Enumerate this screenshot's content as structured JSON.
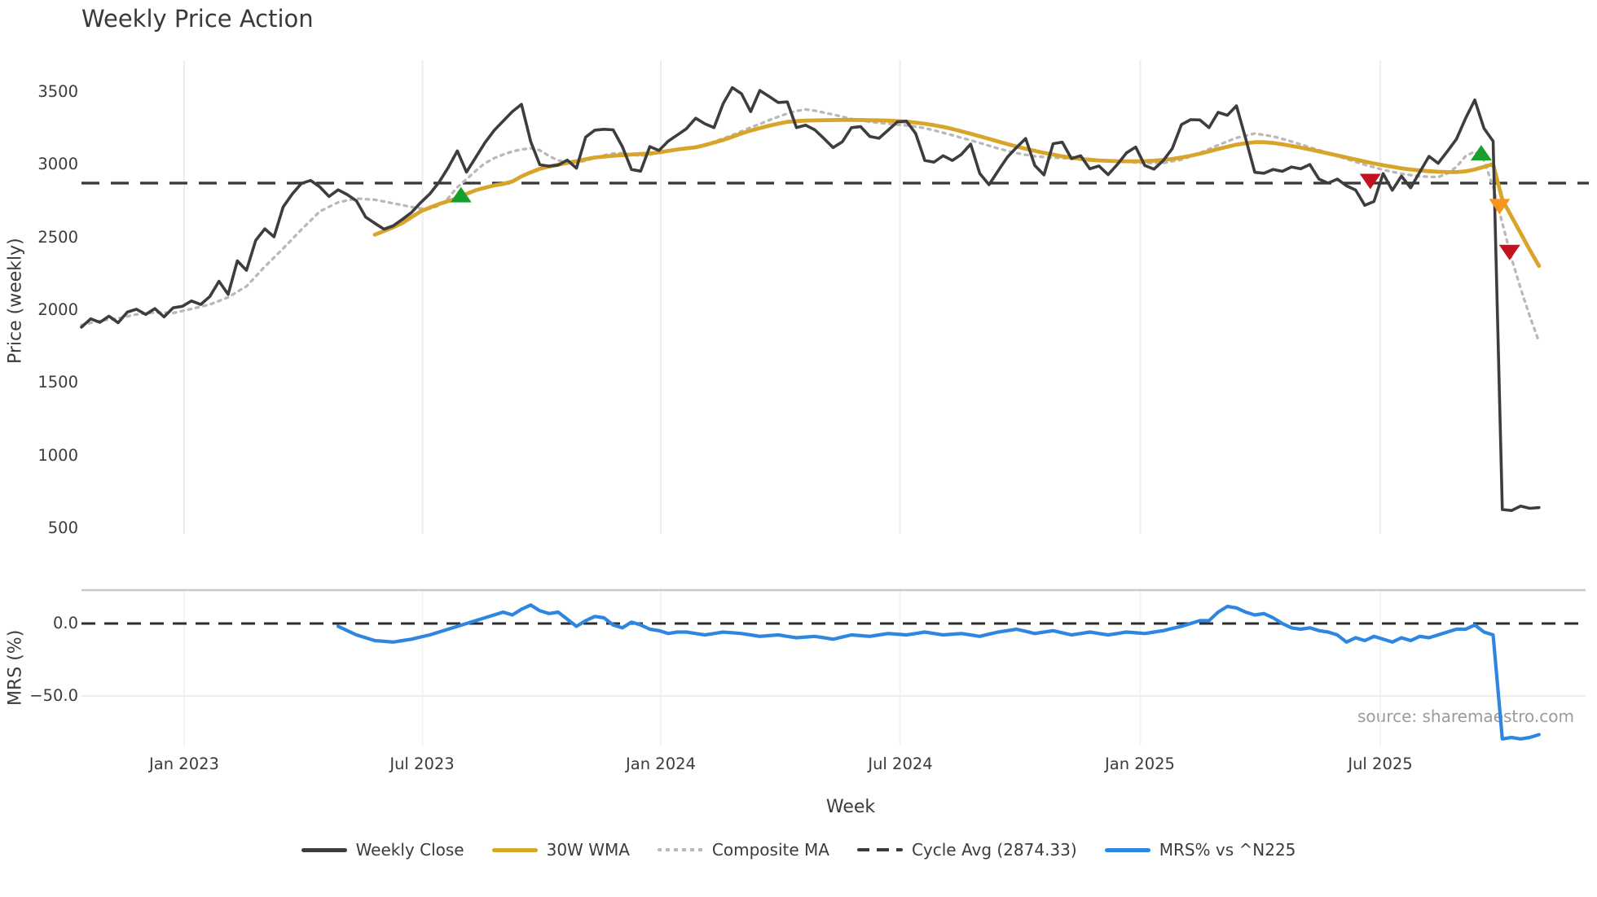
{
  "title": "Weekly Price Action",
  "source": "source: sharemaestro.com",
  "price_axis": {
    "label": "Price (weekly)",
    "ticks": [
      "3500",
      "3000",
      "2500",
      "2000",
      "1500",
      "1000",
      "500"
    ]
  },
  "mrs_axis": {
    "label": "MRS (%)",
    "ticks": [
      "0.0",
      "−50.0"
    ]
  },
  "x_axis": {
    "label": "Week",
    "ticks": [
      "Jan 2023",
      "Jul 2023",
      "Jan 2024",
      "Jul 2024",
      "Jan 2025",
      "Jul 2025"
    ]
  },
  "legend": {
    "items": [
      {
        "label": "Weekly Close",
        "swatch": "solid",
        "color": "#3d3d3d"
      },
      {
        "label": "30W WMA",
        "swatch": "solid",
        "color": "#d9a42a"
      },
      {
        "label": "Composite MA",
        "swatch": "dotted",
        "color": "#b9b9b9"
      },
      {
        "label": "Cycle Avg (2874.33)",
        "swatch": "dashed",
        "color": "#3a3a3a"
      },
      {
        "label": "MRS% vs ^N225",
        "swatch": "solid",
        "color": "#2e86e0"
      }
    ]
  },
  "colors": {
    "weekly_close": "#3d3d3d",
    "wma30": "#d9a42a",
    "composite": "#b9b9b9",
    "cycle_avg": "#3a3a3a",
    "mrs": "#2e86e0",
    "signal_green": "#16a02b",
    "signal_red": "#c41320",
    "signal_orange": "#f7941d",
    "gridline": "#ededf1"
  },
  "chart_data": {
    "type": "line",
    "x_unit": "week",
    "x_tick_weeks": [
      11.2,
      37.2,
      63.2,
      89.3,
      115.5,
      141.7
    ],
    "x_tick_labels": [
      "Jan 2023",
      "Jul 2023",
      "Jan 2024",
      "Jul 2024",
      "Jan 2025",
      "Jul 2025"
    ],
    "panels": [
      {
        "name": "price",
        "ylabel": "Price (weekly)",
        "yticks": [
          3500,
          3000,
          2500,
          2000,
          1500,
          1000,
          500
        ],
        "ylim": [
          450,
          3720
        ],
        "cycle_avg": 2874.33,
        "series": [
          {
            "name": "Weekly Close",
            "style": "solid",
            "start_week": 0,
            "values": [
              1885,
              1942,
              1918,
              1960,
              1915,
              1988,
              2008,
              1972,
              2012,
              1955,
              2018,
              2028,
              2065,
              2040,
              2095,
              2200,
              2110,
              2340,
              2275,
              2480,
              2560,
              2505,
              2710,
              2800,
              2872,
              2892,
              2848,
              2782,
              2828,
              2795,
              2752,
              2640,
              2598,
              2558,
              2580,
              2625,
              2672,
              2740,
              2800,
              2880,
              2980,
              3095,
              2950,
              3050,
              3150,
              3235,
              3300,
              3365,
              3415,
              3160,
              3000,
              2990,
              2998,
              3032,
              2976,
              3190,
              3238,
              3244,
              3240,
              3125,
              2968,
              2956,
              3125,
              3098,
              3162,
              3205,
              3248,
              3320,
              3282,
              3255,
              3420,
              3530,
              3488,
              3365,
              3510,
              3470,
              3428,
              3432,
              3255,
              3272,
              3240,
              3180,
              3118,
              3158,
              3255,
              3262,
              3195,
              3182,
              3238,
              3295,
              3300,
              3215,
              3030,
              3018,
              3062,
              3030,
              3072,
              3142,
              2940,
              2863,
              2958,
              3052,
              3118,
              3180,
              2995,
              2930,
              3145,
              3155,
              3042,
              3062,
              2972,
              2992,
              2932,
              3002,
              3082,
              3122,
              2995,
              2970,
              3028,
              3112,
              3276,
              3310,
              3308,
              3255,
              3360,
              3340,
              3405,
              3180,
              2948,
              2942,
              2968,
              2955,
              2985,
              2972,
              3002,
              2902,
              2874,
              2902,
              2856,
              2826,
              2722,
              2748,
              2940,
              2825,
              2922,
              2842,
              2950,
              3058,
              3010,
              3092,
              3176,
              3320,
              3445,
              3250,
              3162,
              632,
              625,
              655,
              640,
              645
            ]
          },
          {
            "name": "30W WMA",
            "style": "solid",
            "start_week": 32,
            "values": [
              2520,
              2545,
              2570,
              2600,
              2640,
              2680,
              2706,
              2730,
              2750,
              2770,
              2800,
              2825,
              2842,
              2858,
              2868,
              2885,
              2920,
              2948,
              2972,
              2988,
              3000,
              3013,
              3025,
              3038,
              3050,
              3056,
              3062,
              3066,
              3070,
              3074,
              3078,
              3085,
              3095,
              3105,
              3113,
              3120,
              3135,
              3152,
              3170,
              3192,
              3215,
              3235,
              3252,
              3268,
              3282,
              3295,
              3300,
              3303,
              3305,
              3306,
              3307,
              3308,
              3308,
              3307,
              3306,
              3305,
              3303,
              3300,
              3296,
              3290,
              3282,
              3272,
              3260,
              3246,
              3230,
              3213,
              3196,
              3178,
              3160,
              3143,
              3126,
              3110,
              3096,
              3082,
              3070,
              3058,
              3048,
              3040,
              3034,
              3030,
              3027,
              3025,
              3024,
              3024,
              3025,
              3028,
              3033,
              3040,
              3050,
              3062,
              3076,
              3092,
              3108,
              3124,
              3138,
              3148,
              3155,
              3155,
              3150,
              3141,
              3130,
              3118,
              3105,
              3092,
              3078,
              3064,
              3050,
              3036,
              3022,
              3009,
              2997,
              2986,
              2976,
              2968,
              2961,
              2956,
              2952,
              2950,
              2950,
              2955,
              2968,
              2986,
              3005,
              2760,
              2645,
              2530,
              2415,
              2305
            ]
          },
          {
            "name": "Composite MA",
            "style": "dotted",
            "start_week": 0,
            "values": [
              1900,
              1914,
              1928,
              1937,
              1945,
              1959,
              1972,
              1979,
              1985,
              1984,
              1982,
              1996,
              2010,
              2025,
              2040,
              2065,
              2090,
              2128,
              2165,
              2233,
              2300,
              2363,
              2425,
              2490,
              2555,
              2618,
              2680,
              2711,
              2742,
              2755,
              2768,
              2764,
              2760,
              2748,
              2735,
              2723,
              2710,
              2700,
              2698,
              2720,
              2770,
              2846,
              2900,
              2958,
              3010,
              3045,
              3070,
              3092,
              3105,
              3113,
              3100,
              3060,
              3030,
              3018,
              3015,
              3028,
              3048,
              3065,
              3078,
              3080,
              3070,
              3062,
              3070,
              3085,
              3097,
              3103,
              3110,
              3124,
              3140,
              3158,
              3180,
              3204,
              3230,
              3256,
              3280,
              3306,
              3330,
              3352,
              3370,
              3380,
              3372,
              3358,
              3345,
              3330,
              3315,
              3305,
              3295,
              3288,
              3282,
              3276,
              3270,
              3262,
              3252,
              3236,
              3220,
              3203,
              3185,
              3168,
              3150,
              3131,
              3112,
              3096,
              3080,
              3069,
              3058,
              3053,
              3048,
              3046,
              3044,
              3041,
              3038,
              3033,
              3028,
              3024,
              3020,
              3016,
              3012,
              3012,
              3012,
              3024,
              3035,
              3058,
              3080,
              3108,
              3135,
              3160,
              3185,
              3200,
              3215,
              3205,
              3195,
              3178,
              3160,
              3140,
              3120,
              3100,
              3080,
              3060,
              3040,
              3020,
              3000,
              2983,
              2965,
              2952,
              2938,
              2929,
              2920,
              2918,
              2915,
              2940,
              2985,
              3060,
              3090,
              3030,
              2850,
              2600,
              2360,
              2150,
              1960,
              1784
            ]
          }
        ],
        "markers": [
          {
            "shape": "triangle-up",
            "color": "#16a02b",
            "week": 41.4,
            "price": 2792
          },
          {
            "shape": "triangle-down",
            "color": "#c41320",
            "week": 140.6,
            "price": 2888
          },
          {
            "shape": "triangle-up",
            "color": "#16a02b",
            "week": 152.7,
            "price": 3080
          },
          {
            "shape": "triangle-down",
            "color": "#f7941d",
            "week": 154.7,
            "price": 2715
          },
          {
            "shape": "triangle-down",
            "color": "#c41320",
            "week": 155.8,
            "price": 2400
          }
        ]
      },
      {
        "name": "mrs",
        "ylabel": "MRS (%)",
        "yticks": [
          0,
          -50
        ],
        "zero_line": 0,
        "series": [
          {
            "name": "MRS% vs ^N225",
            "style": "solid",
            "start_week": 28,
            "values": [
              -2,
              -5,
              -8,
              -10,
              -12,
              -12.5,
              -13,
              -12,
              -11,
              -9.5,
              -8,
              -6,
              -4,
              -2,
              0,
              2,
              4,
              6,
              8,
              6,
              10,
              13,
              9,
              7,
              8,
              3,
              -2,
              2,
              5,
              4,
              -1,
              -3,
              1,
              -1,
              -4,
              -5,
              -7,
              -6,
              -6,
              -7,
              -8,
              -7,
              -6,
              -6.5,
              -7,
              -8,
              -9,
              -8.5,
              -8,
              -9,
              -10,
              -9.5,
              -9,
              -10,
              -11,
              -9.5,
              -8,
              -8.5,
              -9,
              -8,
              -7,
              -7.5,
              -8,
              -7,
              -6,
              -7,
              -8,
              -7.5,
              -7,
              -8,
              -9,
              -7.5,
              -6,
              -5,
              -4,
              -5.5,
              -7,
              -6,
              -5,
              -6.5,
              -8,
              -7,
              -6,
              -7,
              -8,
              -7,
              -6,
              -6.5,
              -7,
              -6,
              -5,
              -3.5,
              -2,
              0,
              2,
              2,
              8,
              12,
              11,
              8,
              6,
              7,
              4,
              0,
              -3,
              -4,
              -3,
              -5,
              -6,
              -8,
              -13,
              -10,
              -12,
              -9,
              -11,
              -13,
              -10,
              -12,
              -9,
              -10,
              -8,
              -6,
              -4,
              -4,
              -1,
              -6,
              -8,
              -81,
              -80,
              -81,
              -80,
              -78
            ]
          }
        ]
      }
    ]
  }
}
